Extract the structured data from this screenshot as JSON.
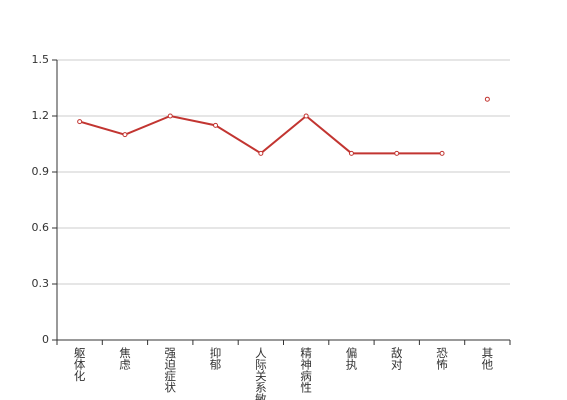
{
  "chart_data": {
    "type": "line",
    "categories": [
      "躯体化",
      "焦虑",
      "强迫症状",
      "抑郁",
      "人际关系敏感",
      "精神病性",
      "偏执",
      "敌对",
      "恐怖",
      "其他"
    ],
    "series": [
      {
        "color": "#c23531",
        "values": [
          1.17,
          1.1,
          1.2,
          1.15,
          1.0,
          1.2,
          1.0,
          1.0,
          1.0,
          null
        ]
      },
      {
        "color": "#c23531",
        "values": [
          null,
          null,
          null,
          null,
          null,
          null,
          null,
          null,
          null,
          1.29
        ]
      }
    ],
    "ylim": [
      0,
      1.5
    ],
    "yticks": [
      0,
      0.3,
      0.6,
      0.9,
      1.2,
      1.5
    ],
    "grid": true
  }
}
